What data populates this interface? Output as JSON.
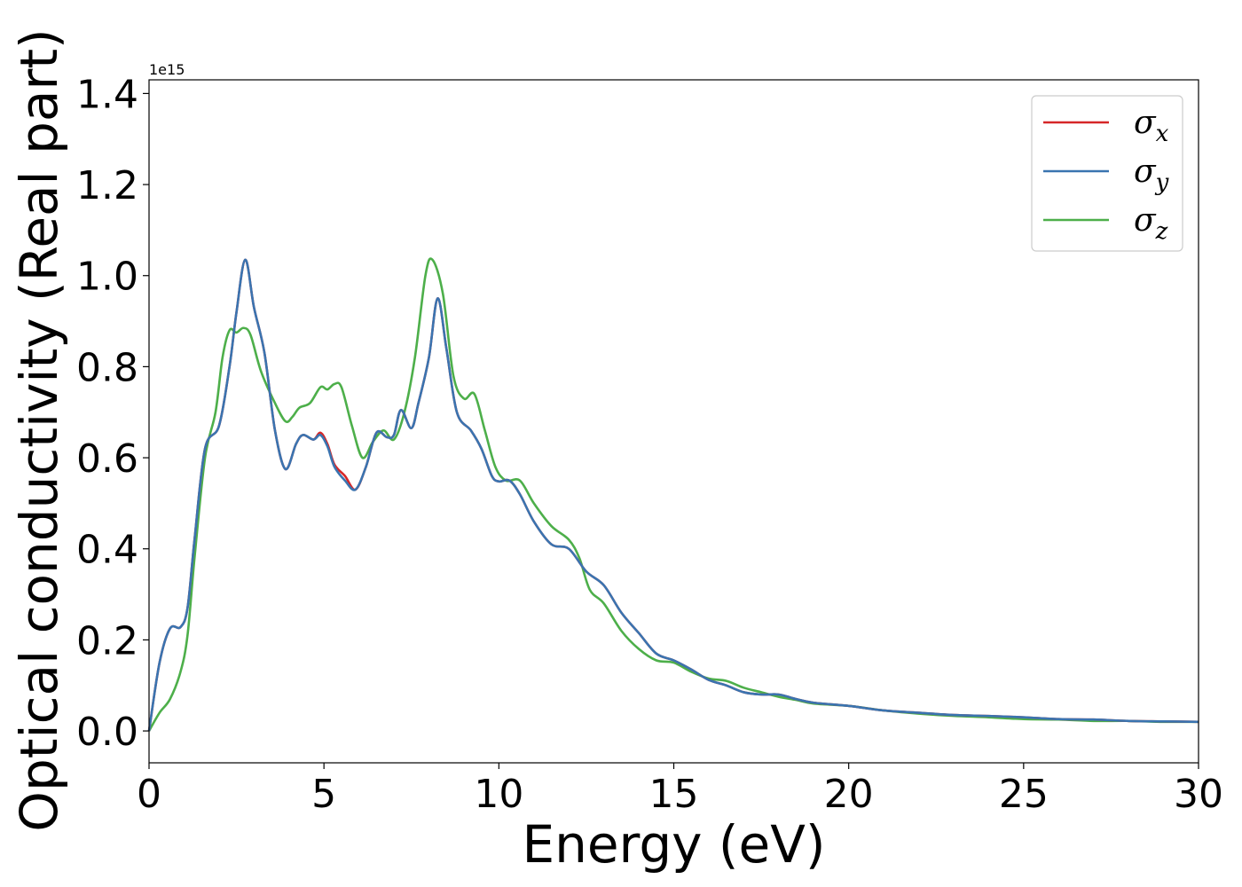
{
  "chart_data": {
    "type": "line",
    "xlabel": "Energy (eV)",
    "ylabel": "Optical conductivity (Real part)",
    "y_offset_text": "1e15",
    "xlim": [
      0,
      30
    ],
    "ylim": [
      -0.07,
      1.43
    ],
    "xticks": [
      0,
      5,
      10,
      15,
      20,
      25,
      30
    ],
    "xtick_labels": [
      "0",
      "5",
      "10",
      "15",
      "20",
      "25",
      "30"
    ],
    "yticks": [
      0.0,
      0.2,
      0.4,
      0.6,
      0.8,
      1.0,
      1.2,
      1.4
    ],
    "ytick_labels": [
      "0.0",
      "0.2",
      "0.4",
      "0.6",
      "0.8",
      "1.0",
      "1.2",
      "1.4"
    ],
    "grid": false,
    "legend_position": "top-right",
    "series": [
      {
        "name": "σx",
        "symbol": "σ",
        "subscript": "x",
        "color": "#d62728",
        "x": [
          0,
          0.3,
          0.6,
          0.9,
          1.1,
          1.3,
          1.6,
          2.0,
          2.3,
          2.5,
          2.75,
          3.0,
          3.3,
          3.6,
          3.9,
          4.2,
          4.4,
          4.7,
          4.9,
          5.1,
          5.3,
          5.6,
          5.9,
          6.2,
          6.5,
          6.8,
          7.0,
          7.2,
          7.5,
          7.7,
          8.0,
          8.25,
          8.5,
          8.8,
          9.2,
          9.5,
          9.8,
          10.0,
          10.3,
          10.6,
          11.0,
          11.5,
          12.0,
          12.5,
          13.0,
          13.5,
          14.0,
          14.5,
          15.0,
          15.5,
          16.0,
          16.5,
          17.0,
          17.5,
          18.0,
          18.5,
          19.0,
          20.0,
          21.0,
          22.0,
          23.0,
          24.0,
          25.0,
          26.0,
          27.0,
          28.0,
          29.0,
          30.0
        ],
        "y": [
          0.0,
          0.15,
          0.225,
          0.228,
          0.27,
          0.42,
          0.62,
          0.67,
          0.8,
          0.92,
          1.035,
          0.93,
          0.83,
          0.66,
          0.575,
          0.63,
          0.65,
          0.64,
          0.655,
          0.63,
          0.585,
          0.56,
          0.53,
          0.58,
          0.655,
          0.645,
          0.65,
          0.705,
          0.665,
          0.72,
          0.82,
          0.95,
          0.84,
          0.7,
          0.66,
          0.62,
          0.56,
          0.548,
          0.55,
          0.52,
          0.46,
          0.41,
          0.4,
          0.35,
          0.32,
          0.26,
          0.215,
          0.17,
          0.155,
          0.135,
          0.112,
          0.1,
          0.085,
          0.08,
          0.08,
          0.07,
          0.062,
          0.055,
          0.045,
          0.04,
          0.035,
          0.033,
          0.03,
          0.026,
          0.025,
          0.022,
          0.021,
          0.02
        ]
      },
      {
        "name": "σy",
        "symbol": "σ",
        "subscript": "y",
        "color": "#3a74b0",
        "x": [
          0,
          0.3,
          0.6,
          0.9,
          1.1,
          1.3,
          1.6,
          2.0,
          2.3,
          2.5,
          2.75,
          3.0,
          3.3,
          3.6,
          3.9,
          4.2,
          4.4,
          4.7,
          4.9,
          5.1,
          5.3,
          5.6,
          5.9,
          6.2,
          6.5,
          6.8,
          7.0,
          7.2,
          7.5,
          7.7,
          8.0,
          8.25,
          8.5,
          8.8,
          9.2,
          9.5,
          9.8,
          10.0,
          10.3,
          10.6,
          11.0,
          11.5,
          12.0,
          12.5,
          13.0,
          13.5,
          14.0,
          14.5,
          15.0,
          15.5,
          16.0,
          16.5,
          17.0,
          17.5,
          18.0,
          18.5,
          19.0,
          20.0,
          21.0,
          22.0,
          23.0,
          24.0,
          25.0,
          26.0,
          27.0,
          28.0,
          29.0,
          30.0
        ],
        "y": [
          0.0,
          0.15,
          0.225,
          0.228,
          0.27,
          0.42,
          0.62,
          0.67,
          0.8,
          0.92,
          1.035,
          0.93,
          0.83,
          0.66,
          0.575,
          0.63,
          0.65,
          0.64,
          0.65,
          0.625,
          0.58,
          0.55,
          0.53,
          0.58,
          0.655,
          0.645,
          0.65,
          0.705,
          0.665,
          0.72,
          0.82,
          0.95,
          0.84,
          0.7,
          0.66,
          0.62,
          0.56,
          0.548,
          0.55,
          0.52,
          0.46,
          0.41,
          0.4,
          0.35,
          0.32,
          0.26,
          0.215,
          0.17,
          0.155,
          0.135,
          0.112,
          0.1,
          0.085,
          0.08,
          0.08,
          0.07,
          0.062,
          0.055,
          0.045,
          0.04,
          0.035,
          0.033,
          0.03,
          0.026,
          0.025,
          0.022,
          0.021,
          0.02
        ]
      },
      {
        "name": "σz",
        "symbol": "σ",
        "subscript": "z",
        "color": "#4daf4a",
        "x": [
          0,
          0.3,
          0.6,
          0.9,
          1.1,
          1.3,
          1.6,
          1.9,
          2.1,
          2.3,
          2.5,
          2.7,
          2.9,
          3.2,
          3.6,
          3.9,
          4.1,
          4.3,
          4.6,
          4.9,
          5.1,
          5.3,
          5.5,
          5.8,
          6.1,
          6.4,
          6.7,
          7.0,
          7.3,
          7.6,
          7.9,
          8.1,
          8.4,
          8.7,
          9.0,
          9.3,
          9.6,
          9.9,
          10.2,
          10.6,
          11.0,
          11.5,
          12.0,
          12.3,
          12.6,
          13.0,
          13.5,
          14.0,
          14.5,
          15.0,
          15.5,
          16.0,
          16.5,
          17.0,
          17.5,
          18.0,
          18.5,
          19.0,
          20.0,
          21.0,
          22.0,
          23.0,
          24.0,
          25.0,
          26.0,
          27.0,
          28.0,
          29.0,
          30.0
        ],
        "y": [
          0.0,
          0.04,
          0.07,
          0.13,
          0.21,
          0.38,
          0.6,
          0.7,
          0.82,
          0.88,
          0.875,
          0.885,
          0.87,
          0.79,
          0.72,
          0.68,
          0.69,
          0.71,
          0.72,
          0.755,
          0.75,
          0.762,
          0.755,
          0.67,
          0.6,
          0.635,
          0.66,
          0.64,
          0.7,
          0.82,
          1.0,
          1.035,
          0.96,
          0.78,
          0.73,
          0.74,
          0.66,
          0.58,
          0.55,
          0.55,
          0.5,
          0.45,
          0.42,
          0.38,
          0.31,
          0.28,
          0.22,
          0.18,
          0.155,
          0.15,
          0.13,
          0.115,
          0.11,
          0.095,
          0.085,
          0.075,
          0.068,
          0.06,
          0.055,
          0.045,
          0.038,
          0.033,
          0.03,
          0.026,
          0.025,
          0.022,
          0.022,
          0.02,
          0.02
        ]
      }
    ]
  }
}
